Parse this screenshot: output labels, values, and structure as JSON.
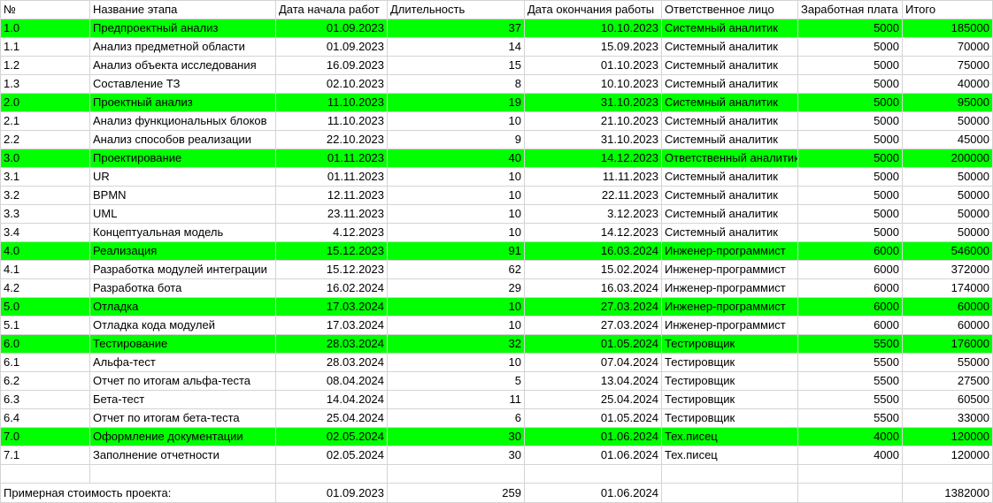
{
  "header": {
    "num": "№",
    "name": "Название этапа",
    "start": "Дата начала работ",
    "duration": "Длительность",
    "end": "Дата окончания работы",
    "responsible": "Ответственное лицо",
    "salary": "Заработная плата",
    "total": "Итого"
  },
  "rows": [
    {
      "num": "1.0",
      "name": "Предпроектный анализ",
      "start": "01.09.2023",
      "duration": "37",
      "end": "10.10.2023",
      "responsible": "Системный аналитик",
      "salary": "5000",
      "total": "185000",
      "highlight": true
    },
    {
      "num": "1.1",
      "name": "Анализ предметной области",
      "start": "01.09.2023",
      "duration": "14",
      "end": "15.09.2023",
      "responsible": "Системный аналитик",
      "salary": "5000",
      "total": "70000",
      "highlight": false
    },
    {
      "num": "1.2",
      "name": "Анализ объекта исследования",
      "start": "16.09.2023",
      "duration": "15",
      "end": "01.10.2023",
      "responsible": "Системный аналитик",
      "salary": "5000",
      "total": "75000",
      "highlight": false
    },
    {
      "num": "1.3",
      "name": "Составление ТЗ",
      "start": "02.10.2023",
      "duration": "8",
      "end": "10.10.2023",
      "responsible": "Системный аналитик",
      "salary": "5000",
      "total": "40000",
      "highlight": false
    },
    {
      "num": "2.0",
      "name": "Проектный анализ",
      "start": "11.10.2023",
      "duration": "19",
      "end": "31.10.2023",
      "responsible": "Системный аналитик",
      "salary": "5000",
      "total": "95000",
      "highlight": true
    },
    {
      "num": "2.1",
      "name": "Анализ функциональных блоков",
      "start": "11.10.2023",
      "duration": "10",
      "end": "21.10.2023",
      "responsible": "Системный аналитик",
      "salary": "5000",
      "total": "50000",
      "highlight": false
    },
    {
      "num": "2.2",
      "name": "Анализ способов реализации",
      "start": "22.10.2023",
      "duration": "9",
      "end": "31.10.2023",
      "responsible": "Системный аналитик",
      "salary": "5000",
      "total": "45000",
      "highlight": false
    },
    {
      "num": "3.0",
      "name": "Проектирование",
      "start": "01.11.2023",
      "duration": "40",
      "end": "14.12.2023",
      "responsible": "Ответственный аналитик",
      "salary": "5000",
      "total": "200000",
      "highlight": true
    },
    {
      "num": "3.1",
      "name": "UR",
      "start": "01.11.2023",
      "duration": "10",
      "end": "11.11.2023",
      "responsible": "Системный аналитик",
      "salary": "5000",
      "total": "50000",
      "highlight": false
    },
    {
      "num": "3.2",
      "name": "BPMN",
      "start": "12.11.2023",
      "duration": "10",
      "end": "22.11.2023",
      "responsible": "Системный аналитик",
      "salary": "5000",
      "total": "50000",
      "highlight": false
    },
    {
      "num": "3.3",
      "name": "UML",
      "start": "23.11.2023",
      "duration": "10",
      "end": "3.12.2023",
      "responsible": "Системный аналитик",
      "salary": "5000",
      "total": "50000",
      "highlight": false
    },
    {
      "num": "3.4",
      "name": "Концептуальная модель",
      "start": "4.12.2023",
      "duration": "10",
      "end": "14.12.2023",
      "responsible": "Системный аналитик",
      "salary": "5000",
      "total": "50000",
      "highlight": false
    },
    {
      "num": "4.0",
      "name": "Реализация",
      "start": "15.12.2023",
      "duration": "91",
      "end": "16.03.2024",
      "responsible": "Инженер-программист",
      "salary": "6000",
      "total": "546000",
      "highlight": true
    },
    {
      "num": "4.1",
      "name": "Разработка модулей интеграции",
      "start": "15.12.2023",
      "duration": "62",
      "end": "15.02.2024",
      "responsible": "Инженер-программист",
      "salary": "6000",
      "total": "372000",
      "highlight": false
    },
    {
      "num": "4.2",
      "name": "Разработка бота",
      "start": "16.02.2024",
      "duration": "29",
      "end": "16.03.2024",
      "responsible": "Инженер-программист",
      "salary": "6000",
      "total": "174000",
      "highlight": false
    },
    {
      "num": "5.0",
      "name": "Отладка",
      "start": "17.03.2024",
      "duration": "10",
      "end": "27.03.2024",
      "responsible": "Инженер-программист",
      "salary": "6000",
      "total": "60000",
      "highlight": true
    },
    {
      "num": "5.1",
      "name": "Отладка кода модулей",
      "start": "17.03.2024",
      "duration": "10",
      "end": "27.03.2024",
      "responsible": "Инженер-программист",
      "salary": "6000",
      "total": "60000",
      "highlight": false
    },
    {
      "num": "6.0",
      "name": "Тестирование",
      "start": "28.03.2024",
      "duration": "32",
      "end": "01.05.2024",
      "responsible": "Тестировщик",
      "salary": "5500",
      "total": "176000",
      "highlight": true
    },
    {
      "num": "6.1",
      "name": "Альфа-тест",
      "start": "28.03.2024",
      "duration": "10",
      "end": "07.04.2024",
      "responsible": "Тестировщик",
      "salary": "5500",
      "total": "55000",
      "highlight": false
    },
    {
      "num": "6.2",
      "name": "Отчет по итогам альфа-теста",
      "start": "08.04.2024",
      "duration": "5",
      "end": "13.04.2024",
      "responsible": "Тестировщик",
      "salary": "5500",
      "total": "27500",
      "highlight": false
    },
    {
      "num": "6.3",
      "name": "Бета-тест",
      "start": "14.04.2024",
      "duration": "11",
      "end": "25.04.2024",
      "responsible": "Тестировщик",
      "salary": "5500",
      "total": "60500",
      "highlight": false
    },
    {
      "num": "6.4",
      "name": "Отчет по итогам бета-теста",
      "start": "25.04.2024",
      "duration": "6",
      "end": "01.05.2024",
      "responsible": "Тестировщик",
      "salary": "5500",
      "total": "33000",
      "highlight": false
    },
    {
      "num": "7.0",
      "name": "Оформление документации",
      "start": "02.05.2024",
      "duration": "30",
      "end": "01.06.2024",
      "responsible": "Тех.писец",
      "salary": "4000",
      "total": "120000",
      "highlight": true
    },
    {
      "num": "7.1",
      "name": "Заполнение отчетности",
      "start": "02.05.2024",
      "duration": "30",
      "end": "01.06.2024",
      "responsible": "Тех.писец",
      "salary": "4000",
      "total": "120000",
      "highlight": false
    }
  ],
  "summary": {
    "label": "Примерная стоимость проекта:",
    "start": "01.09.2023",
    "duration": "259",
    "end": "01.06.2024",
    "total": "1382000"
  },
  "colors": {
    "highlight": "#00ff00",
    "grid": "#d4d4d4"
  }
}
